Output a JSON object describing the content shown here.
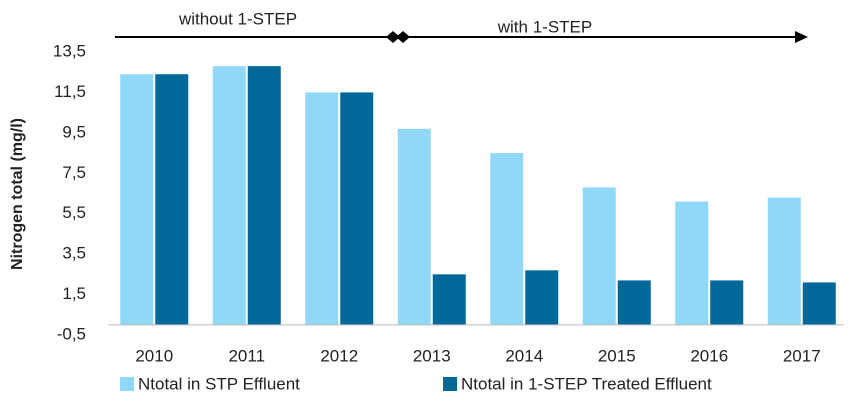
{
  "chart_data": {
    "type": "bar",
    "y_axis_label": "Nitrogen total (mg/l)",
    "annotations": [
      "without 1-STEP",
      "with 1-STEP"
    ],
    "categories": [
      "2010",
      "2011",
      "2012",
      "2013",
      "2014",
      "2015",
      "2016",
      "2017"
    ],
    "series": [
      {
        "name": "Ntotal in STP Effluent",
        "color": "#8fd8f8",
        "values": [
          12.4,
          12.8,
          11.5,
          9.7,
          8.5,
          6.8,
          6.1,
          6.3
        ]
      },
      {
        "name": "Ntotal in 1-STEP Treated Effluent",
        "color": "#00699a",
        "values": [
          12.4,
          12.8,
          11.5,
          2.5,
          2.7,
          2.2,
          2.2,
          2.1
        ]
      }
    ],
    "ylim": [
      -0.5,
      13.5
    ],
    "yticks": [
      {
        "value": -0.5,
        "label": "-0,5"
      },
      {
        "value": 1.5,
        "label": "1,5"
      },
      {
        "value": 3.5,
        "label": "3,5"
      },
      {
        "value": 5.5,
        "label": "5,5"
      },
      {
        "value": 7.5,
        "label": "7,5"
      },
      {
        "value": 9.5,
        "label": "9,5"
      },
      {
        "value": 11.5,
        "label": "11,5"
      },
      {
        "value": 13.5,
        "label": "13,5"
      }
    ],
    "grid": false,
    "legend": "bottom"
  }
}
